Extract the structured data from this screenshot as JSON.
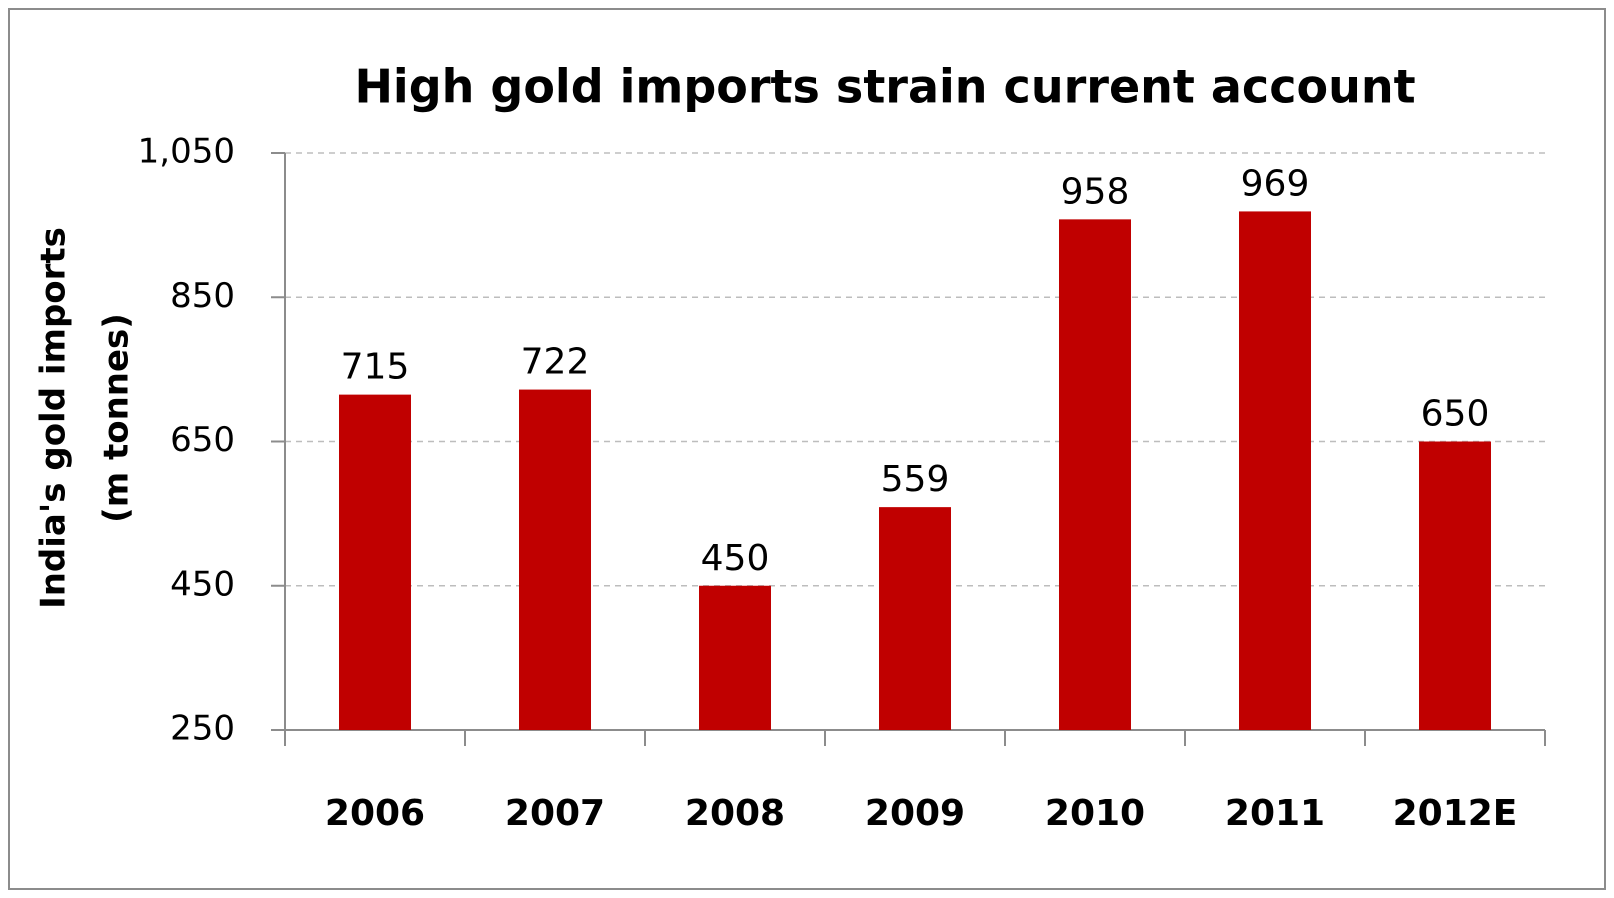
{
  "chart_data": {
    "type": "bar",
    "title": "High gold imports strain current account",
    "ylabel": [
      "India's gold imports",
      "(m  tonnes)"
    ],
    "categories": [
      "2006",
      "2007",
      "2008",
      "2009",
      "2010",
      "2011",
      "2012E"
    ],
    "values": [
      715,
      722,
      450,
      559,
      958,
      969,
      650
    ],
    "color": "#c00000",
    "ylim": [
      250,
      1050
    ],
    "yticks": [
      250,
      450,
      650,
      850,
      {
        "value": 1050,
        "label": "1,050"
      }
    ],
    "grid": true
  }
}
